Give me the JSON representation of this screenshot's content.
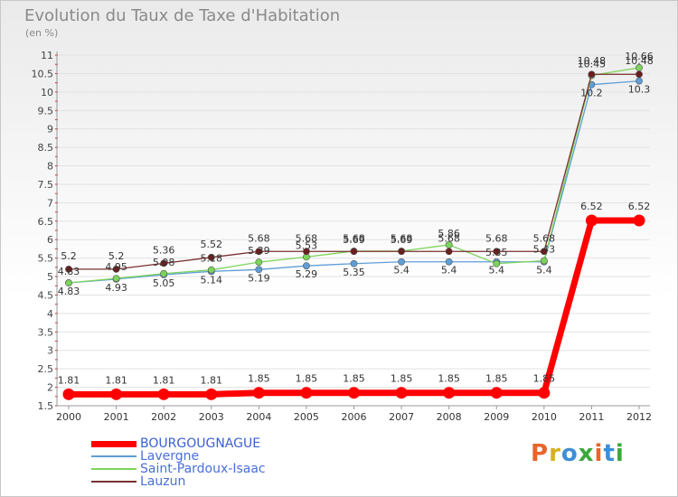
{
  "chart_data": {
    "type": "line",
    "title": "Evolution du Taux de Taxe d'Habitation",
    "subtitle": "(en %)",
    "xlabel": "",
    "ylabel": "",
    "ylim": [
      1.5,
      11
    ],
    "yticks": [
      "1.5",
      "2",
      "2.5",
      "3",
      "3.5",
      "4",
      "4.5",
      "5",
      "5.5",
      "6",
      "6.5",
      "7",
      "7.5",
      "8",
      "8.5",
      "9",
      "9.5",
      "10",
      "10.5",
      "11"
    ],
    "x": [
      "2000",
      "2001",
      "2002",
      "2003",
      "2004",
      "2005",
      "2006",
      "2007",
      "2008",
      "2009",
      "2010",
      "2011",
      "2012"
    ],
    "series": [
      {
        "name": "BOURGOUGNAGUE",
        "color": "#ff0000",
        "values": [
          1.81,
          1.81,
          1.81,
          1.81,
          1.85,
          1.85,
          1.85,
          1.85,
          1.85,
          1.85,
          1.85,
          6.52,
          6.52
        ],
        "labels": [
          "1.81",
          "1.81",
          "1.81",
          "1.81",
          "1.85",
          "1.85",
          "1.85",
          "1.85",
          "1.85",
          "1.85",
          "1.85",
          "6.52",
          "6.52"
        ]
      },
      {
        "name": "Lavergne",
        "color": "#5f9ed6",
        "values": [
          4.83,
          4.93,
          5.05,
          5.14,
          5.19,
          5.29,
          5.35,
          5.4,
          5.4,
          5.4,
          5.4,
          10.2,
          10.3
        ],
        "labels": [
          "4.83",
          "4.93",
          "5.05",
          "5.14",
          "5.19",
          "5.29",
          "5.35",
          "5.4",
          "5.4",
          "5.4",
          "5.4",
          "10.2",
          "10.3"
        ]
      },
      {
        "name": "Saint-Pardoux-Isaac",
        "color": "#7cd45a",
        "values": [
          4.83,
          4.95,
          5.08,
          5.18,
          5.39,
          5.53,
          5.69,
          5.69,
          5.86,
          5.35,
          5.43,
          10.45,
          10.66
        ],
        "labels": [
          "4.83",
          "4.95",
          "5.08",
          "5.18",
          "5.39",
          "5.53",
          "5.69",
          "5.69",
          "5.86",
          "5.35",
          "5.43",
          "10.45",
          "10.66"
        ]
      },
      {
        "name": "Lauzun",
        "color": "#7a2f2f",
        "values": [
          5.2,
          5.2,
          5.36,
          5.52,
          5.68,
          5.68,
          5.68,
          5.68,
          5.68,
          5.68,
          5.68,
          10.48,
          10.48
        ],
        "labels": [
          "5.2",
          "5.2",
          "5.36",
          "5.52",
          "5.68",
          "5.68",
          "5.68",
          "5.68",
          "5.68",
          "5.68",
          "5.68",
          "10.48",
          "10.48"
        ]
      }
    ],
    "legend_position": "bottom-left"
  },
  "logo_text": "Proxiti",
  "logo_colors": [
    "#e8662a",
    "#d6b21e",
    "#3d8fd6",
    "#3aaa3a",
    "#e8662a",
    "#3d8fd6",
    "#3aaa3a"
  ]
}
